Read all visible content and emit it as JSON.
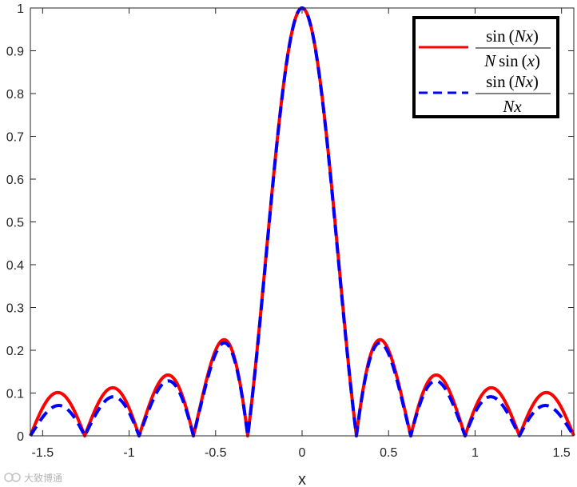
{
  "chart_data": {
    "type": "line",
    "xlabel": "x",
    "ylabel": "",
    "title": "",
    "xlim": [
      -1.5708,
      1.5708
    ],
    "ylim": [
      0,
      1
    ],
    "x_ticks": [
      -1.5,
      -1,
      -0.5,
      0,
      0.5,
      1,
      1.5
    ],
    "x_tick_labels": [
      "-1.5",
      "-1",
      "-0.5",
      "0",
      "0.5",
      "1",
      "1.5"
    ],
    "y_ticks": [
      0,
      0.1,
      0.2,
      0.3,
      0.4,
      0.5,
      0.6,
      0.7,
      0.8,
      0.9,
      1
    ],
    "y_tick_labels": [
      "0",
      "0.1",
      "0.2",
      "0.3",
      "0.4",
      "0.5",
      "0.6",
      "0.7",
      "0.8",
      "0.9",
      "1"
    ],
    "N": 10,
    "grid": false,
    "legend_position": "top-right",
    "series": [
      {
        "legend_numerator": [
          "sin",
          "(",
          "Nx",
          ")"
        ],
        "legend_denominator": [
          "N",
          "sin",
          "(",
          "x",
          ")"
        ],
        "formula": "abs(sin(N*x)/(N*sin(x)))",
        "color": "#ff0000",
        "style": "solid"
      },
      {
        "legend_numerator": [
          "sin",
          "(",
          "Nx",
          ")"
        ],
        "legend_denominator": [
          "Nx"
        ],
        "formula": "abs(sin(N*x)/(N*x))",
        "color": "#0000ff",
        "style": "dashed"
      }
    ]
  },
  "watermark": {
    "text": "大致博通"
  }
}
